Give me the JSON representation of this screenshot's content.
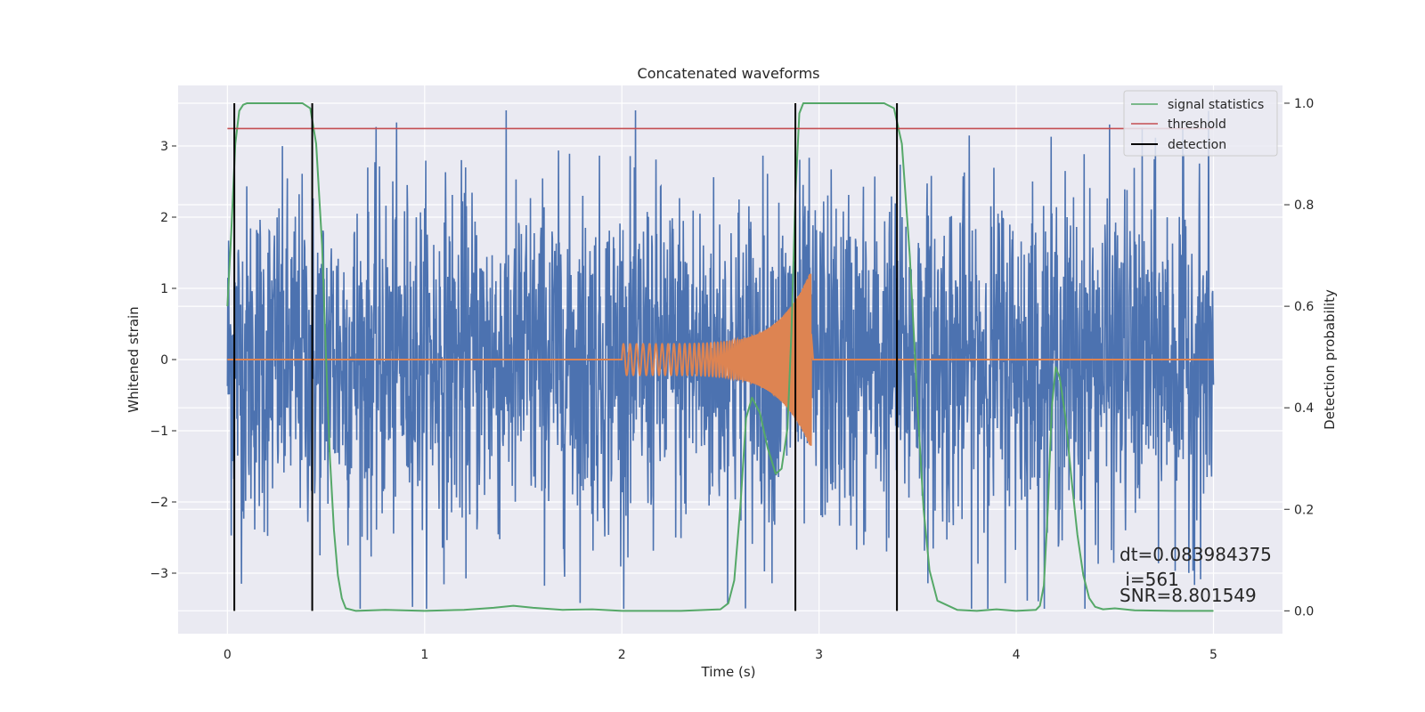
{
  "chart_data": {
    "type": "line",
    "title": "Concatenated waveforms",
    "xlabel": "Time (s)",
    "ylabel": "Whitened strain",
    "y2label": "Detection probability",
    "xlim": [
      -0.25,
      5.35
    ],
    "ylim": [
      -3.85,
      3.85
    ],
    "y2lim": [
      -0.045,
      1.035
    ],
    "xticks": [
      0,
      1,
      2,
      3,
      4,
      5
    ],
    "yticks": [
      -3,
      -2,
      -1,
      0,
      1,
      2,
      3
    ],
    "y2ticks": [
      0.0,
      0.2,
      0.4,
      0.6,
      0.8,
      1.0
    ],
    "xtick_labels": [
      "0",
      "1",
      "2",
      "3",
      "4",
      "5"
    ],
    "ytick_labels": [
      "−3",
      "−2",
      "−1",
      "0",
      "1",
      "2",
      "3"
    ],
    "y2tick_labels": [
      "0.0",
      "0.2",
      "0.4",
      "0.6",
      "0.8",
      "1.0"
    ],
    "grid": true,
    "legend_position": "top-right",
    "legend": [
      "signal statistics",
      "threshold",
      "detection"
    ],
    "colors": {
      "noise": "#4c72b0",
      "template": "#dd8452",
      "signal_statistics": "#55a868",
      "threshold": "#c44e52",
      "detection": "#000000",
      "background": "#eaeaf2",
      "grid": "#ffffff"
    },
    "series": [
      {
        "axis": "left",
        "description": "noisy whitened strain",
        "x_range": [
          0,
          5
        ],
        "typical_amplitude": 1.2,
        "peak_min": -3.5,
        "peak_max": 3.5
      },
      {
        "axis": "left",
        "description": "injected chirp waveform",
        "chirp_start": 2.0,
        "chirp_end": 2.96,
        "start_amplitude": 0.22,
        "peak_amplitude": 1.25
      },
      {
        "name": "signal statistics",
        "axis": "right",
        "x": [
          0.0,
          0.02,
          0.04,
          0.06,
          0.08,
          0.1,
          0.15,
          0.2,
          0.3,
          0.38,
          0.42,
          0.45,
          0.48,
          0.5,
          0.52,
          0.54,
          0.56,
          0.58,
          0.6,
          0.65,
          0.8,
          1.0,
          1.2,
          1.35,
          1.45,
          1.55,
          1.7,
          1.85,
          2.0,
          2.3,
          2.5,
          2.54,
          2.57,
          2.6,
          2.63,
          2.66,
          2.7,
          2.74,
          2.78,
          2.81,
          2.84,
          2.86,
          2.88,
          2.9,
          2.92,
          2.95,
          3.0,
          3.2,
          3.33,
          3.38,
          3.42,
          3.46,
          3.5,
          3.53,
          3.56,
          3.6,
          3.7,
          3.8,
          3.9,
          4.0,
          4.1,
          4.12,
          4.14,
          4.16,
          4.18,
          4.2,
          4.22,
          4.25,
          4.28,
          4.31,
          4.34,
          4.37,
          4.4,
          4.44,
          4.5,
          4.6,
          4.8,
          5.0
        ],
        "y": [
          0.6,
          0.75,
          0.92,
          0.985,
          0.997,
          1.0,
          1.0,
          1.0,
          1.0,
          1.0,
          0.99,
          0.92,
          0.72,
          0.5,
          0.3,
          0.16,
          0.07,
          0.025,
          0.005,
          0.0,
          0.002,
          0.0,
          0.002,
          0.006,
          0.01,
          0.006,
          0.002,
          0.003,
          0.0,
          0.0,
          0.003,
          0.015,
          0.06,
          0.2,
          0.38,
          0.42,
          0.39,
          0.32,
          0.27,
          0.28,
          0.36,
          0.55,
          0.82,
          0.98,
          1.0,
          1.0,
          1.0,
          1.0,
          1.0,
          0.99,
          0.92,
          0.7,
          0.4,
          0.2,
          0.08,
          0.02,
          0.002,
          0.0,
          0.003,
          0.0,
          0.002,
          0.01,
          0.05,
          0.2,
          0.4,
          0.48,
          0.46,
          0.38,
          0.26,
          0.15,
          0.07,
          0.025,
          0.008,
          0.003,
          0.005,
          0.001,
          0.0,
          0.0
        ]
      },
      {
        "name": "threshold",
        "axis": "right",
        "value": 0.95,
        "x_range": [
          0,
          5
        ]
      },
      {
        "name": "detection",
        "axis": "right",
        "x_values": [
          0.035,
          0.43,
          2.88,
          3.395
        ],
        "y_range": [
          0.0,
          1.0
        ]
      }
    ],
    "annotations": {
      "dt": "dt=0.083984375",
      "i": " i=561",
      "snr": "SNR=8.801549"
    }
  }
}
